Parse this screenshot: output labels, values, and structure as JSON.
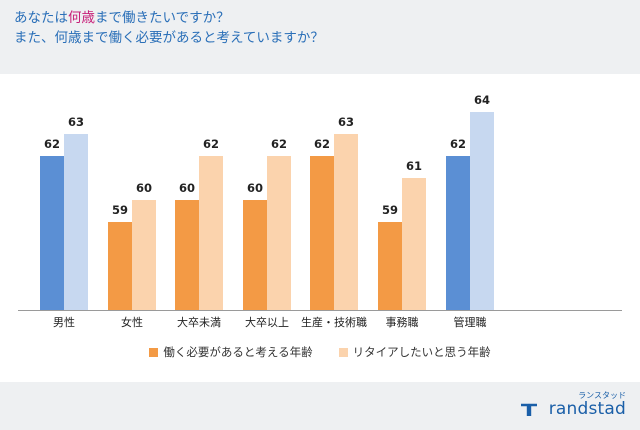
{
  "title": {
    "line1_pre": "あなたは",
    "line1_hl": "何歳",
    "line1_post": "まで働きたいですか？",
    "line2": "また、何歳まで働く必要があると考えていますか？"
  },
  "colors": {
    "title": "#2a6fb8",
    "highlight": "#c8217a",
    "blue_dark": "#5b8fd4",
    "blue_light": "#c7d8f0",
    "orange_dark": "#f39a45",
    "orange_light": "#fbd3ad",
    "legend_dark": "#f39a45",
    "legend_light": "#fbd3ad"
  },
  "chart_data": {
    "type": "bar",
    "categories": [
      "男性",
      "女性",
      "大卒未満",
      "大卒以上",
      "生産・技術職",
      "事務職",
      "管理職"
    ],
    "groups": [
      [
        0,
        1
      ],
      [
        2,
        3
      ],
      [
        4,
        5,
        6
      ]
    ],
    "series": [
      {
        "name": "働く必要があると考える年齢",
        "values": [
          62,
          59,
          60,
          60,
          62,
          59,
          62
        ]
      },
      {
        "name": "リタイアしたいと思う年齢",
        "values": [
          63,
          60,
          62,
          62,
          63,
          61,
          64
        ]
      }
    ],
    "category_palette": [
      "blue",
      "orange",
      "orange",
      "orange",
      "orange",
      "orange",
      "blue"
    ],
    "ylim": [
      55,
      65
    ],
    "legend_position": "bottom",
    "grid": false
  },
  "legend": {
    "dark_label": "働く必要があると考える年齢",
    "light_label": "リタイアしたいと思う年齢"
  },
  "logo": {
    "kana": "ランスタッド",
    "word": "randstad"
  }
}
